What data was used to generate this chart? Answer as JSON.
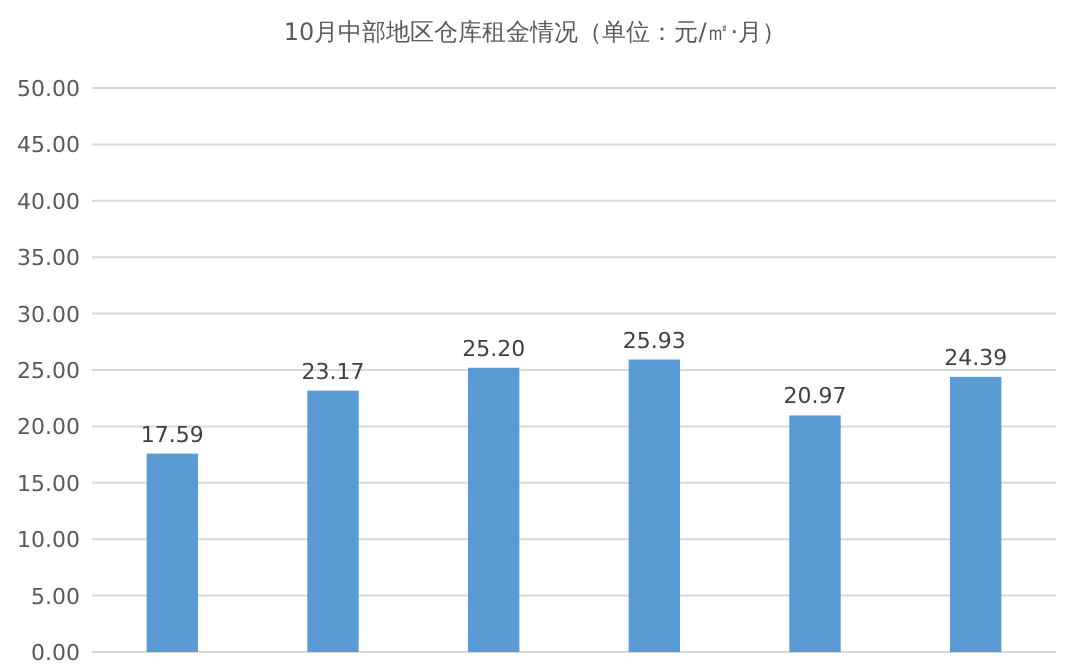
{
  "chart_data": {
    "type": "bar",
    "title": "10月中部地区仓库租金情况（单位：元/㎡·月）",
    "categories": [
      null,
      null,
      null,
      null,
      null,
      null
    ],
    "values": [
      17.59,
      23.17,
      25.2,
      25.93,
      20.97,
      24.39
    ],
    "value_labels": [
      "17.59",
      "23.17",
      "25.20",
      "25.93",
      "20.97",
      "24.39"
    ],
    "color": "#5b9bd5",
    "ylim": [
      0,
      50
    ],
    "yticks": [
      {
        "value": 0,
        "label": "0.00"
      },
      {
        "value": 5,
        "label": "5.00"
      },
      {
        "value": 10,
        "label": "10.00"
      },
      {
        "value": 15,
        "label": "15.00"
      },
      {
        "value": 20,
        "label": "20.00"
      },
      {
        "value": 25,
        "label": "25.00"
      },
      {
        "value": 30,
        "label": "30.00"
      },
      {
        "value": 35,
        "label": "35.00"
      },
      {
        "value": 40,
        "label": "40.00"
      },
      {
        "value": 45,
        "label": "45.00"
      },
      {
        "value": 50,
        "label": "50.00"
      }
    ],
    "grid": "y",
    "tick_labels": "y"
  }
}
